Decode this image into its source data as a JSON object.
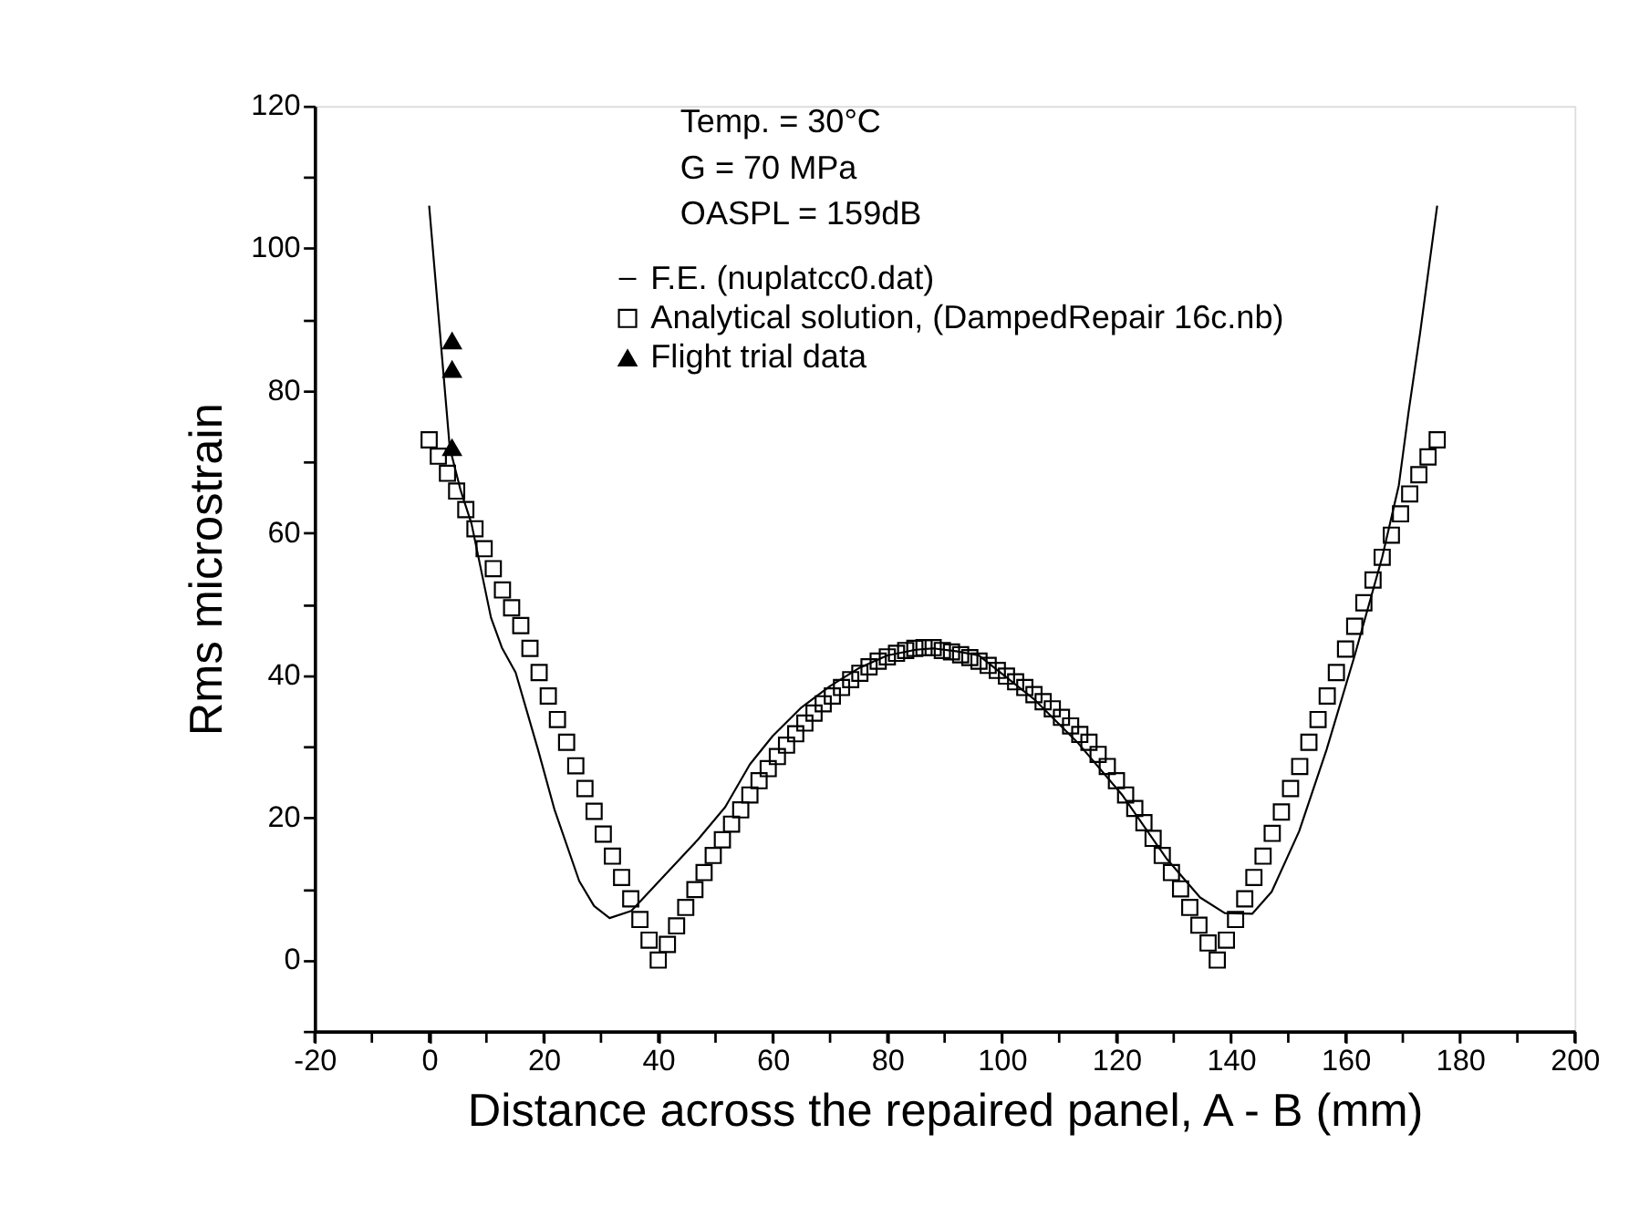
{
  "chart_data": {
    "type": "scatter",
    "xlabel": "Distance across the repaired panel, A - B (mm)",
    "ylabel": "Rms microstrain",
    "annotations": [
      "Temp.   = 30°C",
      "G = 70 MPa",
      "OASPL = 159dB"
    ],
    "xlim": [
      -20,
      200
    ],
    "xticks": [
      -20,
      {
        "value": -10,
        "label": null
      },
      0,
      {
        "value": 10,
        "label": null
      },
      20,
      {
        "value": 30,
        "label": null
      },
      40,
      {
        "value": 50,
        "label": null
      },
      60,
      {
        "value": 70,
        "label": null
      },
      80,
      {
        "value": 90,
        "label": null
      },
      100,
      {
        "value": 110,
        "label": null
      },
      120,
      {
        "value": 130,
        "label": null
      },
      140,
      {
        "value": 150,
        "label": null
      },
      160,
      {
        "value": 170,
        "label": null
      },
      180,
      {
        "value": 190,
        "label": null
      },
      200
    ],
    "ylim": [
      -10,
      120
    ],
    "yticks": [
      {
        "value": -10,
        "label": null
      },
      0,
      {
        "value": 10,
        "label": null
      },
      20,
      {
        "value": 30,
        "label": null
      },
      40,
      {
        "value": 50,
        "label": null
      },
      60,
      {
        "value": 70,
        "label": null
      },
      80,
      {
        "value": 90,
        "label": null
      },
      100,
      {
        "value": 110,
        "label": null
      },
      120
    ],
    "grid": false,
    "legend": "top",
    "series": [
      {
        "name": "F.E. (nuplatcc0.dat)",
        "type": "line",
        "marker": "none",
        "line_style": "solid",
        "color": "#000000",
        "x": [
          0,
          1.8,
          3.6,
          5.5,
          7.4,
          10.8,
          12.7,
          15.1,
          19.0,
          21.9,
          26.2,
          28.8,
          31.5,
          35.3,
          41.1,
          46.9,
          51.7,
          56,
          60,
          65,
          70,
          75,
          80,
          85,
          88,
          92,
          96.0,
          105.7,
          113.4,
          121.1,
          128.8,
          134.6,
          138.9,
          143.7,
          147.1,
          151.9,
          156.7,
          161.6,
          166.4,
          169.3,
          171,
          173,
          176
        ],
        "values": [
          106,
          89,
          72,
          66,
          61.3,
          48.1,
          43.9,
          40.4,
          29.6,
          21.1,
          11.1,
          7.6,
          5.9,
          6.9,
          11.9,
          16.9,
          21.5,
          27.5,
          31.5,
          35.5,
          38.5,
          41,
          42.8,
          43.6,
          43.8,
          43.4,
          42.8,
          36.6,
          30.4,
          23.1,
          14.2,
          8.8,
          6.6,
          6.5,
          9.6,
          18.1,
          29.6,
          42.8,
          56.6,
          66.7,
          77,
          88,
          106
        ]
      },
      {
        "name": "Analytical solution, (DampedRepair 16c.nb)",
        "marker": "square",
        "color": "#000000",
        "x": [
          0,
          1.6,
          3.2,
          4.8,
          6.4,
          8,
          9.6,
          11.2,
          12.8,
          14.4,
          16,
          17.6,
          19.2,
          20.8,
          22.4,
          24,
          25.6,
          27.2,
          28.8,
          30.4,
          32,
          33.6,
          35.2,
          36.8,
          38.4,
          40,
          41.6,
          43.2,
          44.8,
          46.4,
          48,
          49.6,
          51.2,
          52.8,
          54.4,
          56,
          57.6,
          59.2,
          60.8,
          62.4,
          64,
          65.6,
          67.2,
          68.8,
          70.4,
          72,
          73.6,
          75.2,
          76.8,
          78.4,
          80,
          81.6,
          83.2,
          84.8,
          86.4,
          88,
          89.6,
          91.2,
          92.8,
          94.4,
          96,
          97.6,
          99.2,
          100.8,
          102.4,
          104,
          105.6,
          107.2,
          108.8,
          110.4,
          112,
          113.6,
          115.2,
          116.8,
          118.4,
          120,
          121.6,
          123.2,
          124.8,
          126.4,
          128,
          129.6,
          131.2,
          132.8,
          134.4,
          136,
          137.6,
          139.2,
          140.8,
          142.4,
          144,
          145.6,
          147.2,
          148.8,
          150.4,
          152,
          153.6,
          155.2,
          156.8,
          158.4,
          160,
          161.6,
          163.2,
          164.8,
          166.4,
          168,
          169.6,
          171.2,
          172.8,
          174.4,
          176
        ],
        "values": [
          73.1,
          70.8,
          68.4,
          65.9,
          63.3,
          60.6,
          57.8,
          55.0,
          52.0,
          49.5,
          47.0,
          43.8,
          40.4,
          37.1,
          33.8,
          30.6,
          27.3,
          24.1,
          20.9,
          17.7,
          14.6,
          11.6,
          8.6,
          5.7,
          2.8,
          0,
          2.2,
          4.8,
          7.4,
          9.9,
          12.3,
          14.7,
          16.9,
          19.1,
          21.1,
          23.2,
          25.2,
          26.9,
          28.6,
          30.2,
          31.8,
          33.3,
          34.7,
          36.0,
          37.1,
          38.3,
          39.4,
          40.3,
          41.2,
          42.0,
          42.6,
          43.1,
          43.5,
          43.8,
          43.9,
          43.9,
          43.5,
          43.3,
          42.9,
          42.5,
          42.0,
          41.4,
          40.7,
          39.9,
          39.1,
          38.3,
          37.3,
          36.3,
          35.3,
          34.1,
          32.9,
          31.7,
          30.6,
          28.9,
          27.2,
          25.2,
          23.2,
          21.3,
          19.3,
          17.1,
          14.7,
          12.3,
          10.0,
          7.4,
          4.9,
          2.4,
          0,
          2.8,
          5.7,
          8.6,
          11.6,
          14.6,
          17.8,
          20.8,
          24.1,
          27.2,
          30.6,
          33.8,
          37.1,
          40.4,
          43.7,
          46.9,
          50.2,
          53.4,
          56.6,
          59.7,
          62.7,
          65.5,
          68.2,
          70.7,
          73.1
        ]
      },
      {
        "name": "Flight trial data",
        "marker": "triangle",
        "color": "#000000",
        "x": [
          4,
          4,
          4
        ],
        "values": [
          87,
          83,
          72
        ]
      }
    ]
  }
}
